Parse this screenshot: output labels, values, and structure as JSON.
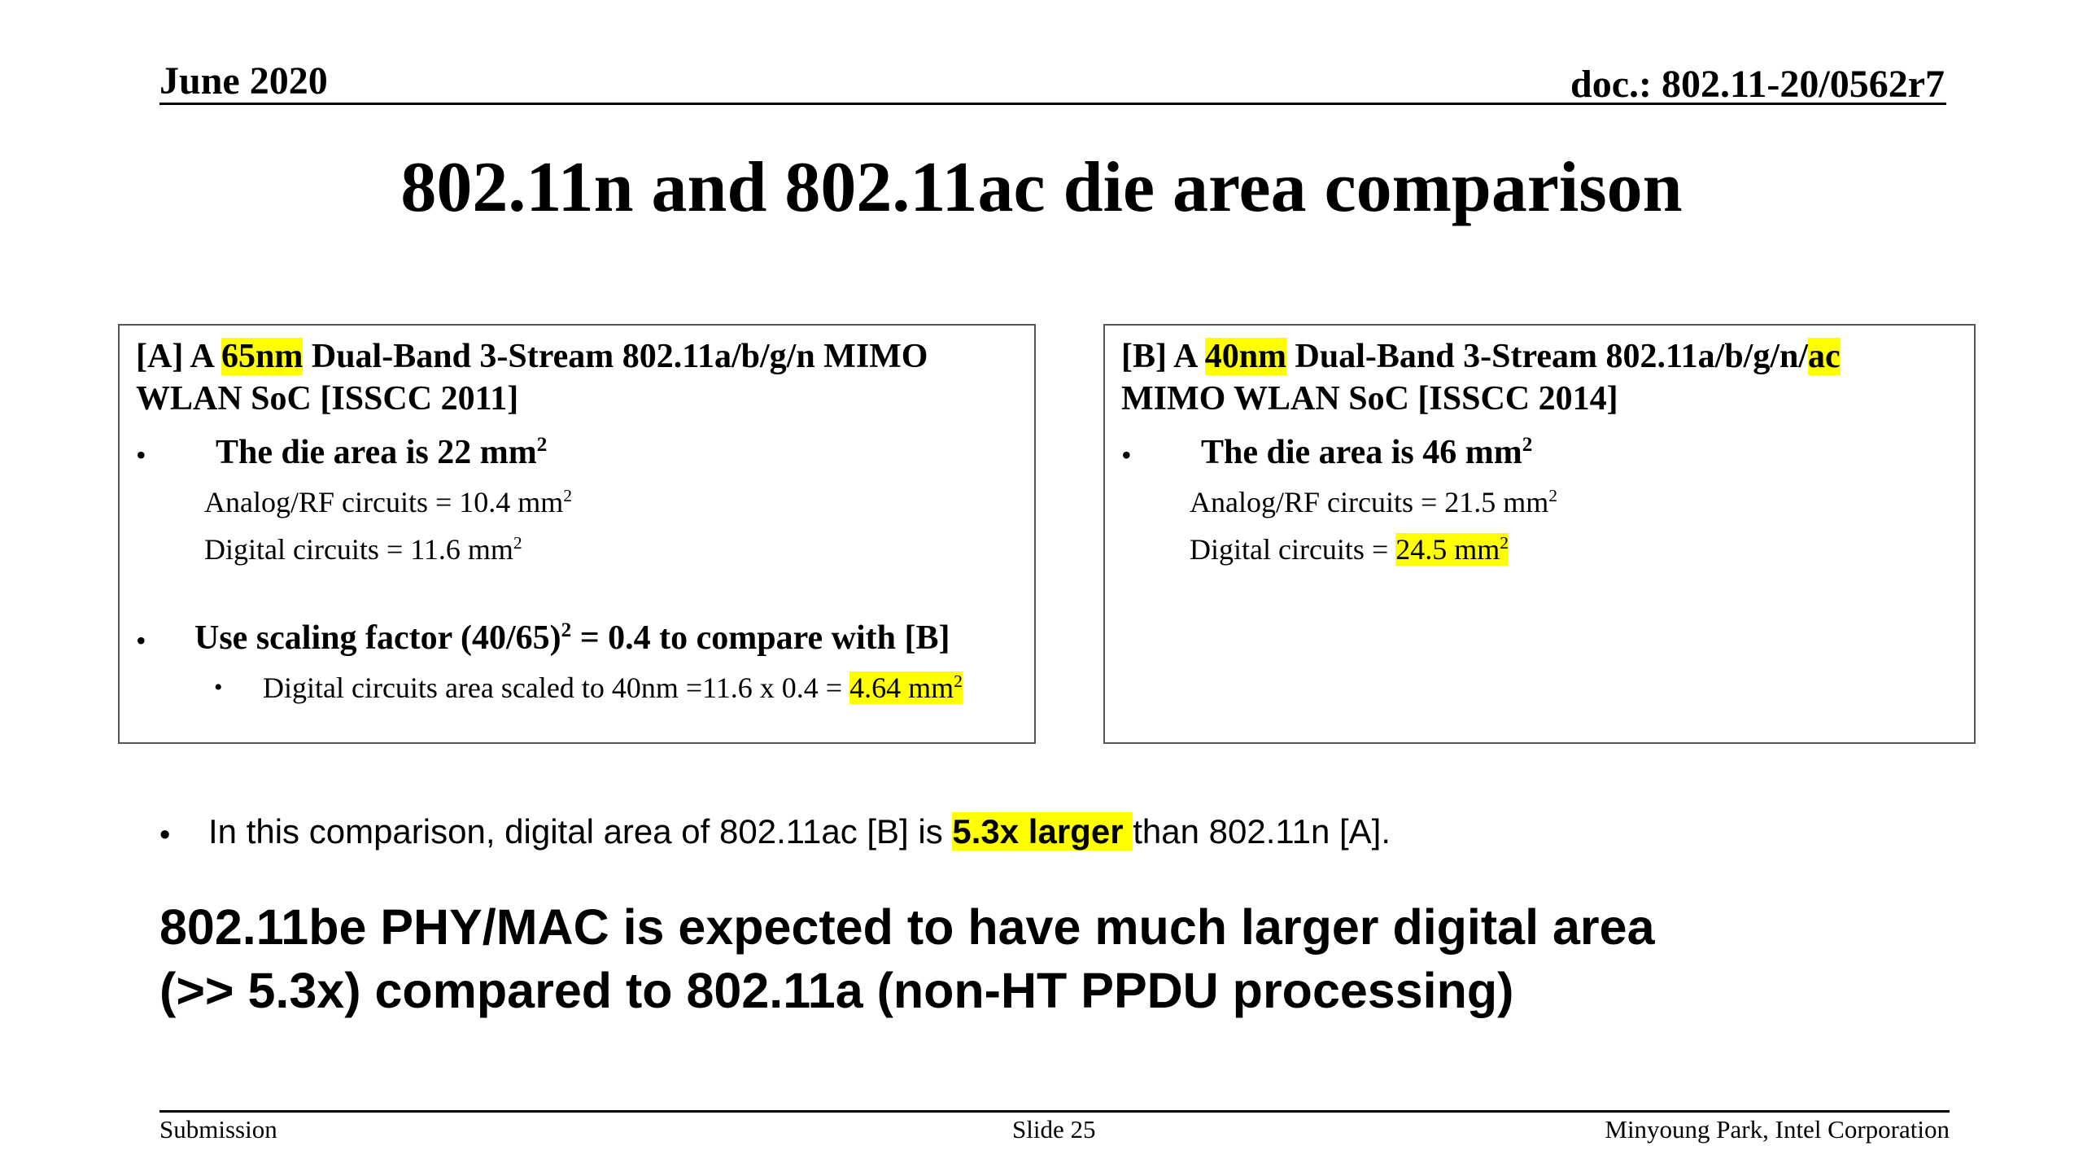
{
  "header": {
    "date": "June 2020",
    "doc": "doc.: 802.11-20/0562r7"
  },
  "title": "802.11n and 802.11ac die area comparison",
  "box_a": {
    "title_pre": "[A] A ",
    "title_hl": "65nm",
    "title_post": " Dual-Band 3-Stream 802.11a/b/g/n MIMO WLAN SoC [ISSCC 2011]",
    "die_area": "The die area is 22 mm",
    "die_area_sup": "2",
    "analog": "Analog/RF circuits = 10.4 mm",
    "analog_sup": "2",
    "digital": "Digital circuits = 11.6 mm",
    "digital_sup": "2",
    "scaling_pre": "Use scaling factor (40/65)",
    "scaling_sup": "2",
    "scaling_post": " = 0.4 to compare with [B]",
    "scaled_pre": "Digital circuits area scaled to 40nm =11.6 x 0.4 =  ",
    "scaled_hl": "4.64 mm",
    "scaled_sup": "2"
  },
  "box_b": {
    "title_pre": "[B] A ",
    "title_hl": "40nm",
    "title_mid": " Dual-Band 3-Stream 802.11a/b/g/n/",
    "title_hl2": "ac",
    "title_post": " MIMO WLAN SoC [ISSCC 2014]",
    "die_area": "The die area is 46 mm",
    "die_area_sup": "2",
    "analog": "Analog/RF circuits = 21.5 mm",
    "analog_sup": "2",
    "digital_pre": "Digital circuits = ",
    "digital_hl": "24.5 mm",
    "digital_sup": "2"
  },
  "bullet_char": "•",
  "comparison": {
    "pre": "In this comparison, digital area of 802.11ac [B] is ",
    "hl": "5.3x larger ",
    "post": "than 802.11n [A]."
  },
  "conclusion": {
    "line1": "802.11be PHY/MAC is expected to have much larger digital area",
    "line2": "(>> 5.3x) compared to 802.11a (non-HT PPDU processing)"
  },
  "footer": {
    "left": "Submission",
    "center": "Slide 25",
    "right": "Minyoung Park, Intel Corporation"
  }
}
